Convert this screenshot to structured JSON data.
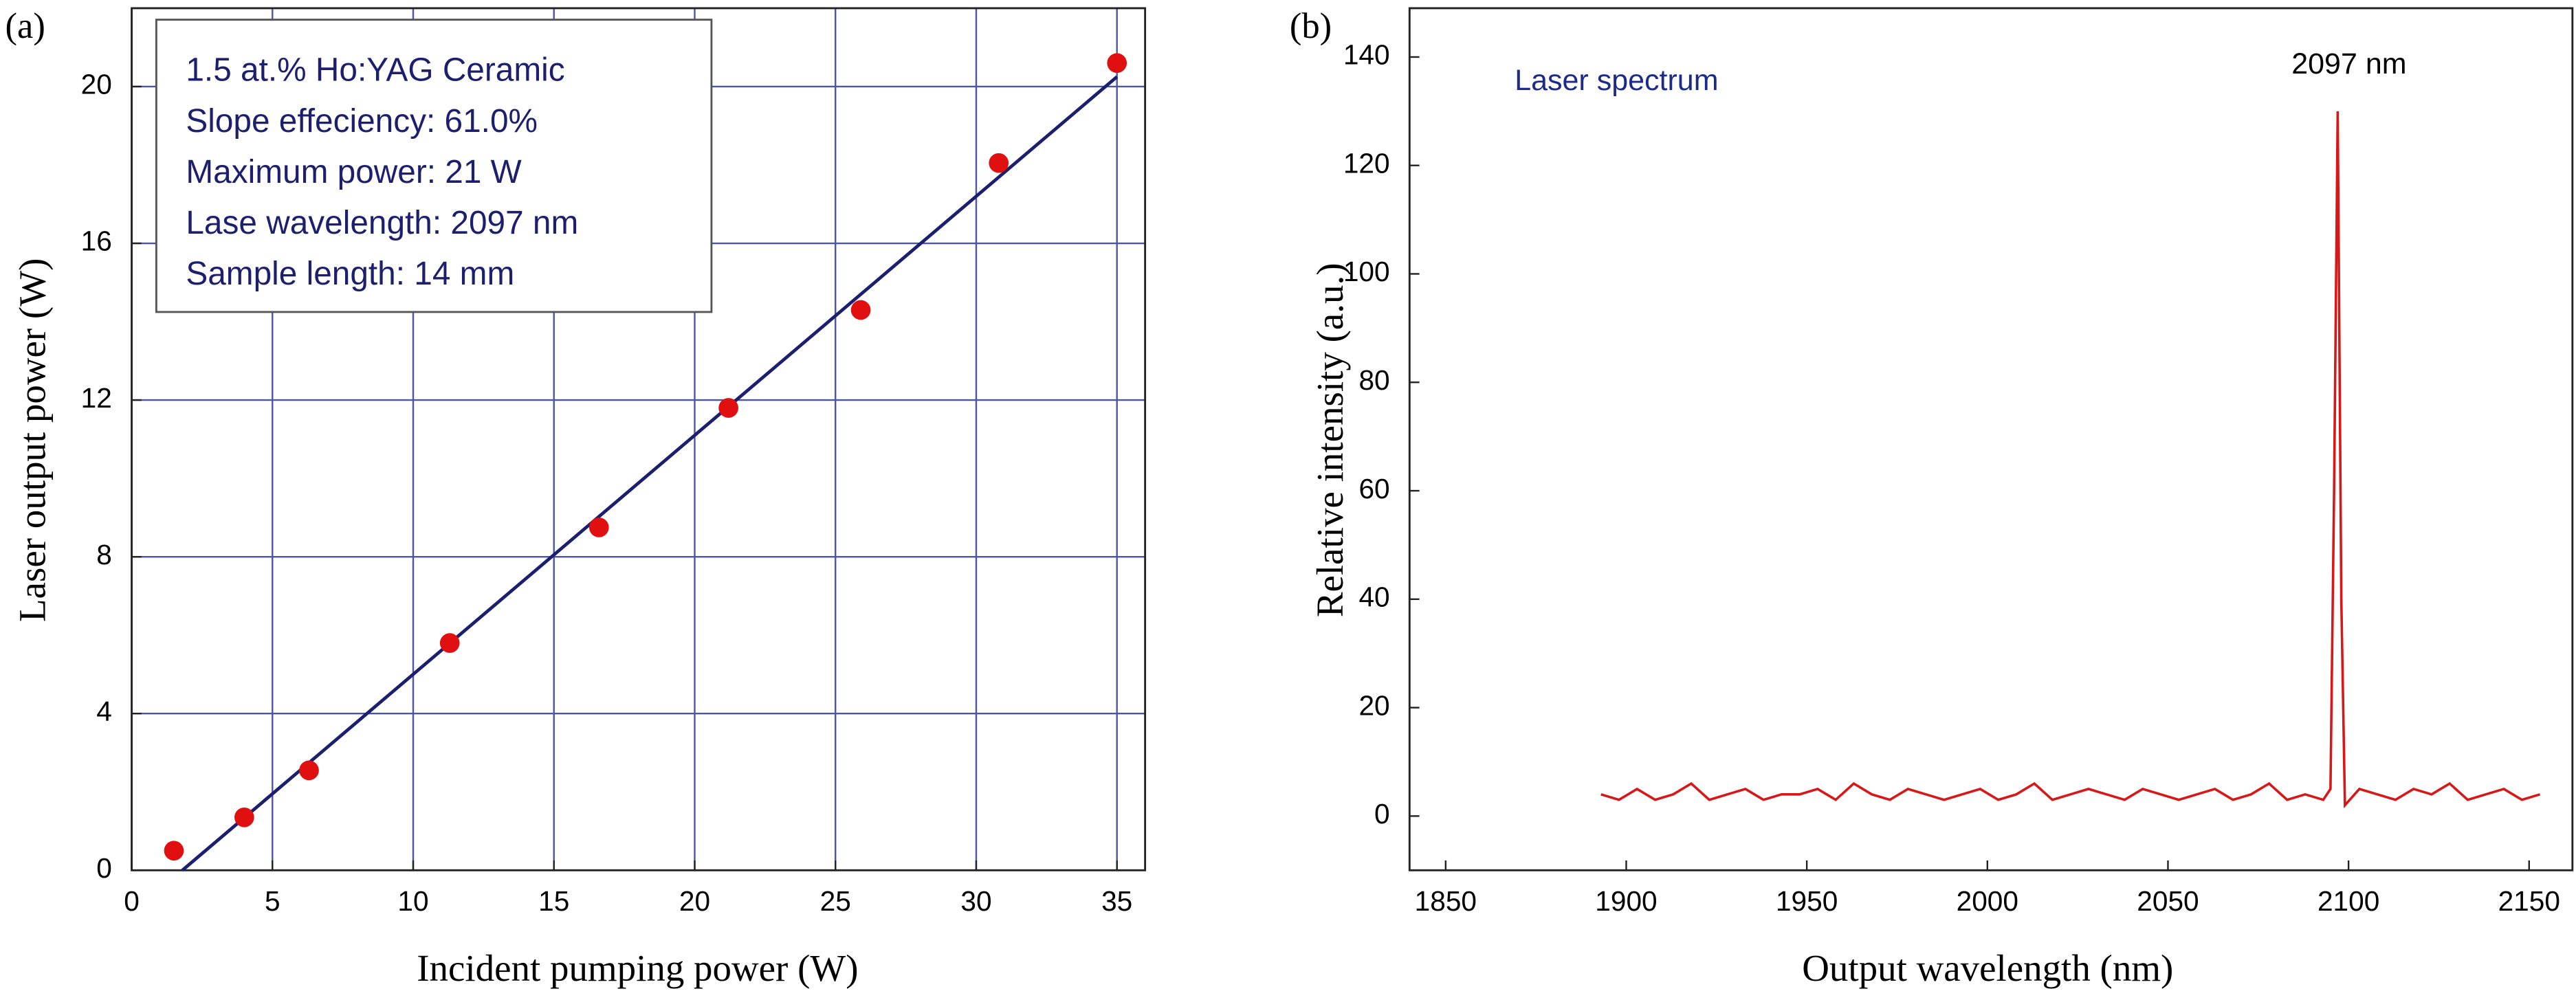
{
  "chart_data": [
    {
      "type": "scatter",
      "panel_label": "(a)",
      "x_label": "Incident pumping power (W)",
      "y_label": "Laser output power (W)",
      "annotations": [
        "1.5 at.% Ho:YAG Ceramic",
        "Slope effeciency: 61.0%",
        "Maximum power: 21 W",
        "Lase wavelength: 2097 nm",
        "Sample length: 14 mm"
      ],
      "x": [
        1.5,
        4,
        6.3,
        11.3,
        16.6,
        21.2,
        25.9,
        30.8,
        35
      ],
      "values": [
        0.5,
        1.35,
        2.55,
        5.8,
        8.75,
        11.8,
        14.3,
        18.05,
        20.6
      ],
      "color": "#e01010",
      "fit": {
        "x": [
          1.8,
          35
        ],
        "values": [
          0,
          20.25
        ],
        "color": "#1c1f6e"
      },
      "xlim": [
        0,
        36
      ],
      "ylim": [
        0,
        22
      ],
      "xticks": [
        0,
        5,
        10,
        15,
        20,
        25,
        30,
        35
      ],
      "yticks": [
        0,
        4,
        8,
        12,
        16,
        20
      ],
      "grid": true,
      "grid_color": "#4b55a8"
    },
    {
      "type": "line",
      "panel_label": "(b)",
      "x_label": "Output wavelength (nm)",
      "y_label": "Relative intensity (a.u.)",
      "annotation": "Laser spectrum",
      "peak_label": "2097 nm",
      "x": [
        1893,
        1898,
        1903,
        1908,
        1913,
        1918,
        1923,
        1928,
        1933,
        1938,
        1943,
        1948,
        1953,
        1958,
        1963,
        1968,
        1973,
        1978,
        1983,
        1988,
        1993,
        1998,
        2003,
        2008,
        2013,
        2018,
        2023,
        2028,
        2033,
        2038,
        2043,
        2048,
        2053,
        2058,
        2063,
        2068,
        2073,
        2078,
        2083,
        2088,
        2093,
        2095,
        2096,
        2097,
        2098,
        2099,
        2103,
        2108,
        2113,
        2118,
        2123,
        2128,
        2133,
        2138,
        2143,
        2148,
        2153
      ],
      "series": [
        {
          "color": "#d81818",
          "values": [
            4,
            3,
            5,
            3,
            4,
            6,
            3,
            4,
            5,
            3,
            4,
            4,
            5,
            3,
            6,
            4,
            3,
            5,
            4,
            3,
            4,
            5,
            3,
            4,
            6,
            3,
            4,
            5,
            4,
            3,
            5,
            4,
            3,
            4,
            5,
            3,
            4,
            6,
            3,
            4,
            3,
            5,
            60,
            130,
            40,
            2,
            5,
            4,
            3,
            5,
            4,
            6,
            3,
            4,
            5,
            3,
            4
          ]
        }
      ],
      "xlim": [
        1840,
        2162
      ],
      "ylim": [
        -10,
        149
      ],
      "xticks": [
        1850,
        1900,
        1950,
        2000,
        2050,
        2100,
        2150
      ],
      "yticks": [
        0,
        20,
        40,
        60,
        80,
        100,
        120,
        140
      ],
      "grid": false
    }
  ]
}
